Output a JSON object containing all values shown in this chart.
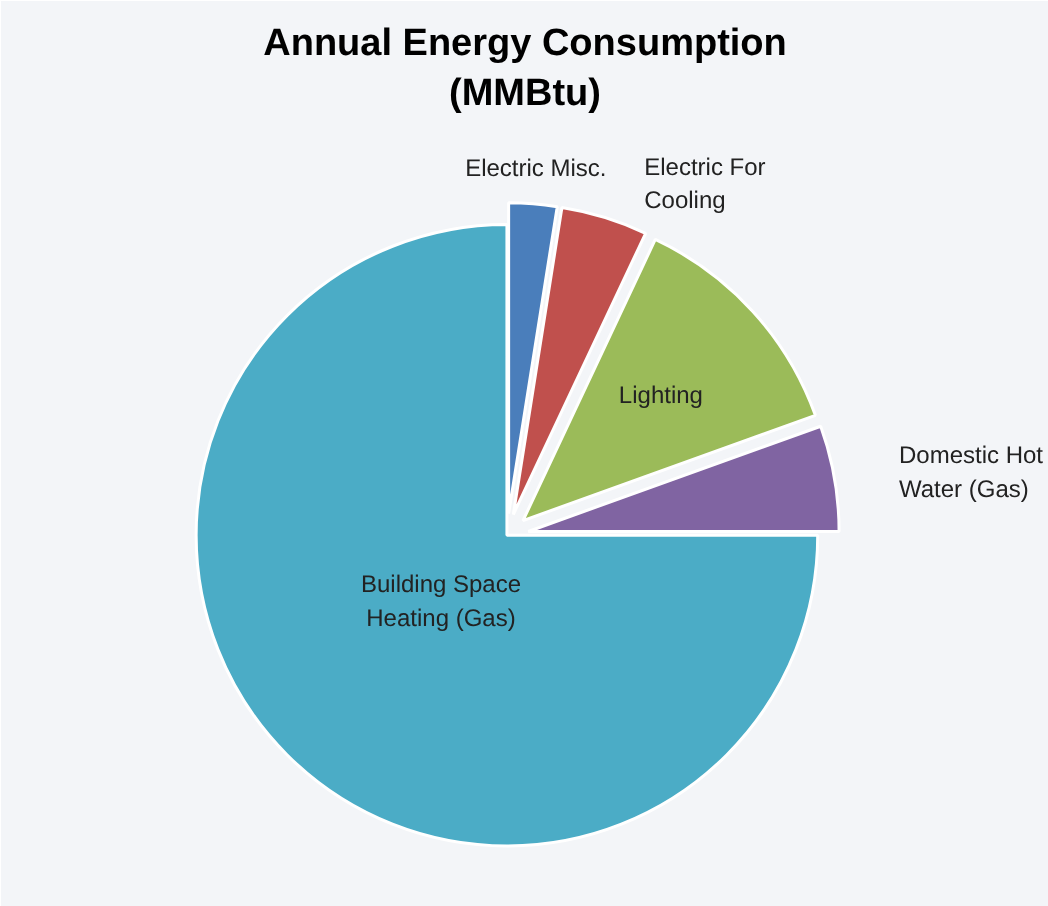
{
  "chart_data": {
    "type": "pie",
    "title": "Annual Energy Consumption (MMBtu)",
    "categories": [
      "Electric Misc.",
      "Electric For Cooling",
      "Lighting",
      "Domestic Hot Water (Gas)",
      "Building Space Heating (Gas)"
    ],
    "values": [
      2.5,
      4.5,
      12.5,
      5.5,
      75
    ],
    "colors": [
      "#4a7ebb",
      "#c0504d",
      "#9bbb59",
      "#8064a2",
      "#4bacc6"
    ]
  }
}
